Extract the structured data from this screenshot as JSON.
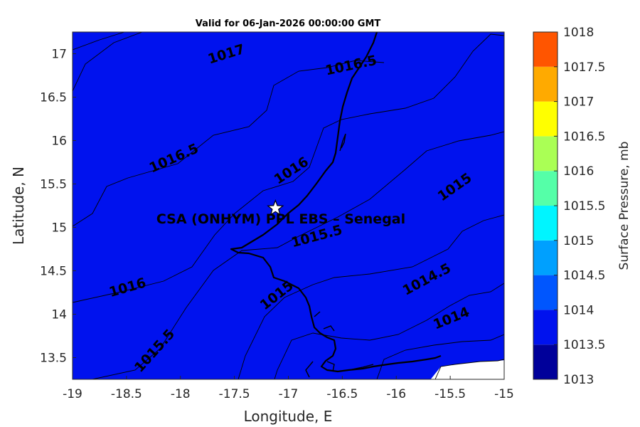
{
  "title": "Valid for 06-Jan-2026 00:00:00 GMT",
  "xlabel": "Longitude, E",
  "ylabel": "Latitude, N",
  "colorbar_label": "Surface Pressure, mb",
  "x_ticks": [
    "-19",
    "-18.5",
    "-18",
    "-17.5",
    "-17",
    "-16.5",
    "-16",
    "-15.5",
    "-15"
  ],
  "y_ticks": [
    "13.5",
    "14",
    "14.5",
    "15",
    "15.5",
    "16",
    "16.5",
    "17"
  ],
  "colorbar": {
    "ticks": [
      "1013",
      "1013.5",
      "1014",
      "1014.5",
      "1015",
      "1015.5",
      "1016",
      "1016.5",
      "1017",
      "1017.5",
      "1018"
    ],
    "colors": [
      "#00009a",
      "#0012ee",
      "#0056fe",
      "#00a0fe",
      "#00f5ff",
      "#55ffa8",
      "#aaff55",
      "#ffff00",
      "#ffaa00",
      "#ff5500",
      "#ff0000"
    ]
  },
  "contour_labels": [
    "1017",
    "1016.5",
    "1016.5",
    "1016",
    "1016",
    "1015.5",
    "1015.5",
    "1015",
    "1015",
    "1014.5",
    "1014"
  ],
  "site": {
    "name": "CSA (ONHYM) PPL EBS – Senegal",
    "lon": -17.12,
    "lat": 15.22
  },
  "chart_data": {
    "type": "contour",
    "title": "Valid for 06-Jan-2026 00:00:00 GMT",
    "xlabel": "Longitude, E",
    "ylabel": "Latitude, N",
    "xlim": [
      -19,
      -15
    ],
    "ylim": [
      13.25,
      17.25
    ],
    "variable": "Surface Pressure, mb",
    "clim": [
      1013,
      1018
    ],
    "contour_interval": 0.5,
    "contour_levels": [
      1014,
      1014.5,
      1015,
      1015.5,
      1016,
      1016.5,
      1017
    ],
    "colormap": "jet",
    "colorbar_position": "right",
    "grid": false,
    "marker": {
      "label": "CSA (ONHYM) PPL EBS – Senegal",
      "lon": -17.12,
      "lat": 15.22,
      "symbol": "star"
    }
  }
}
